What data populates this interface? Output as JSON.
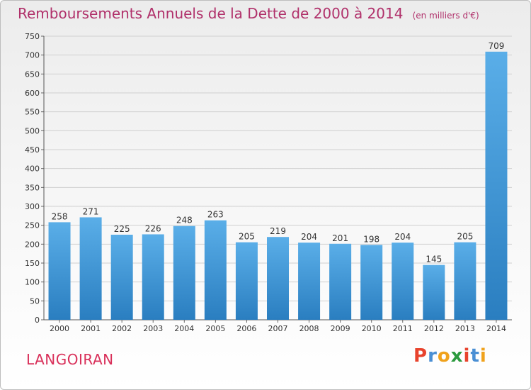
{
  "chart_data": {
    "type": "bar",
    "title": "Remboursements Annuels de la Dette de 2000 à 2014",
    "unit": "(en milliers d'€)",
    "categories": [
      "2000",
      "2001",
      "2002",
      "2003",
      "2004",
      "2005",
      "2006",
      "2007",
      "2008",
      "2009",
      "2010",
      "2011",
      "2012",
      "2013",
      "2014"
    ],
    "values": [
      258,
      271,
      225,
      226,
      248,
      263,
      205,
      219,
      204,
      201,
      198,
      204,
      145,
      205,
      709
    ],
    "ylim": [
      0,
      750
    ],
    "yticks": [
      0,
      50,
      100,
      150,
      200,
      250,
      300,
      350,
      400,
      450,
      500,
      550,
      600,
      650,
      700,
      750
    ],
    "grid": true,
    "bar_color_top": "#5aaee8",
    "bar_color_bottom": "#2a7ec0"
  },
  "footer": {
    "commune": "LANGOIRAN",
    "brand": "Proxiti"
  },
  "colors": {
    "title": "#b0306a",
    "commune": "#d9305a",
    "grid": "#d0d0d0",
    "brand_letters": [
      "#e8432d",
      "#4a8fd4",
      "#f0a21c",
      "#2b9a3e",
      "#e8432d",
      "#4a8fd4",
      "#f0a21c"
    ]
  }
}
